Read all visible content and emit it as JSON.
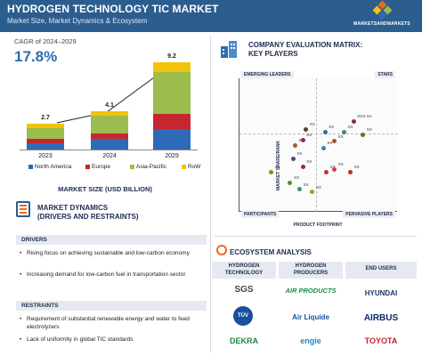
{
  "header": {
    "title": "HYDROGEN TECHNOLOGY TIC MARKET",
    "subtitle": "Market Size, Market Dynamics & Ecosystem",
    "logo_text": "MARKETSANDMARKETS",
    "logo_icon": "cube-logo-icon"
  },
  "market": {
    "cagr_label": "CAGR of 2024–2029",
    "cagr_value": "17.8%",
    "size_label": "MARKET SIZE (USD BILLION)"
  },
  "chart_data": {
    "type": "bar",
    "stacked": true,
    "categories": [
      "2023",
      "2024",
      "2029"
    ],
    "totals": [
      "2.7",
      "4.1",
      "9.2"
    ],
    "series": [
      {
        "name": "North America",
        "color": "#2e6ab8",
        "values": [
          0.7,
          1.1,
          2.2
        ]
      },
      {
        "name": "Europe",
        "color": "#c8262e",
        "values": [
          0.4,
          0.6,
          1.6
        ]
      },
      {
        "name": "Asia-Pacific",
        "color": "#9cbd4e",
        "values": [
          1.2,
          1.9,
          4.4
        ]
      },
      {
        "name": "RoW",
        "color": "#f2c30a",
        "values": [
          0.4,
          0.5,
          1.0
        ]
      }
    ],
    "growth_arrow": true,
    "xlabel": "MARKET SIZE (USD BILLION)"
  },
  "dynamics": {
    "title_line1": "MARKET DYNAMICS",
    "title_line2": "(DRIVERS AND RESTRAINTS)",
    "drivers_label": "DRIVERS",
    "drivers": [
      "Rising focus on achieving sustainable and low-carbon economy",
      "Increasing demand for low-carbon fuel in transportation sector"
    ],
    "restraints_label": "RESTRAINTS",
    "restraints": [
      "Requirement of substantial renewable energy and water to feed electrolyzers",
      "Lack of uniformity in global TIC standards"
    ]
  },
  "matrix": {
    "title_line1": "COMPANY EVALUATION MATRIX:",
    "title_line2": "KEY PLAYERS",
    "q_top_left": "EMERGING LEADERS",
    "q_top_right": "STARS",
    "q_bottom_left": "PARTICIPANTS",
    "q_bottom_right": "PERVASIVE PLAYERS",
    "y_axis": "MARKET SHARE/RANK",
    "x_axis": "PRODUCT FOOTPRINT",
    "points": [
      {
        "label": "SGS SA",
        "x": 0.72,
        "y": 0.68,
        "color": "#8a2c3c"
      },
      {
        "label": "XX",
        "x": 0.78,
        "y": 0.58,
        "color": "#6a6a2e"
      },
      {
        "label": "XX",
        "x": 0.66,
        "y": 0.6,
        "color": "#3c8a6a"
      },
      {
        "label": "XX",
        "x": 0.6,
        "y": 0.53,
        "color": "#b24d2a"
      },
      {
        "label": "XX",
        "x": 0.42,
        "y": 0.62,
        "color": "#5a3e2e"
      },
      {
        "label": "XX",
        "x": 0.54,
        "y": 0.6,
        "color": "#2a6ea8"
      },
      {
        "label": "XX",
        "x": 0.4,
        "y": 0.54,
        "color": "#a0226a"
      },
      {
        "label": "XX",
        "x": 0.53,
        "y": 0.48,
        "color": "#2a8a9a"
      },
      {
        "label": "XX",
        "x": 0.35,
        "y": 0.5,
        "color": "#a85a2a"
      },
      {
        "label": "XX",
        "x": 0.34,
        "y": 0.4,
        "color": "#4a4a8a"
      },
      {
        "label": "XX",
        "x": 0.4,
        "y": 0.34,
        "color": "#8a2a5a"
      },
      {
        "label": "XX",
        "x": 0.55,
        "y": 0.3,
        "color": "#c03040"
      },
      {
        "label": "XX",
        "x": 0.6,
        "y": 0.32,
        "color": "#d04040"
      },
      {
        "label": "XX",
        "x": 0.7,
        "y": 0.3,
        "color": "#c02a2a"
      },
      {
        "label": "XX",
        "x": 0.2,
        "y": 0.3,
        "color": "#8a8a2a"
      },
      {
        "label": "XX",
        "x": 0.32,
        "y": 0.22,
        "color": "#5a8a3a"
      },
      {
        "label": "XX",
        "x": 0.38,
        "y": 0.17,
        "color": "#2a9a6a"
      },
      {
        "label": "XX",
        "x": 0.46,
        "y": 0.15,
        "color": "#a0a02a"
      }
    ]
  },
  "ecosystem": {
    "title": "ECOSYSTEM ANALYSIS",
    "columns": [
      {
        "head": "HYDROGEN TECHNOLOGY",
        "logos": [
          "SGS",
          "TÜV",
          "DEKRA"
        ]
      },
      {
        "head": "HYDROGEN PRODUCERS",
        "logos": [
          "AIR PRODUCTS",
          "Air Liquide",
          "engie"
        ]
      },
      {
        "head": "END USERS",
        "logos": [
          "HYUNDAI",
          "AIRBUS",
          "TOYOTA"
        ]
      }
    ]
  }
}
